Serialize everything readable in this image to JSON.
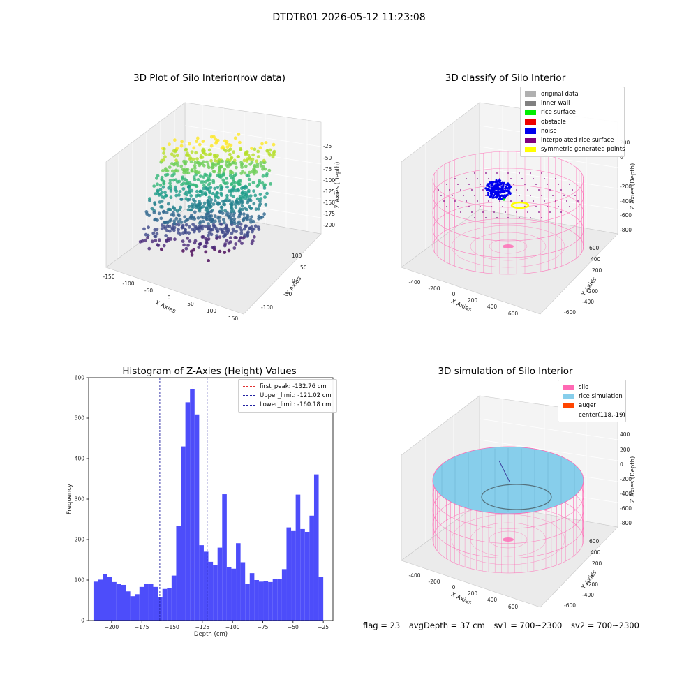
{
  "suptitle": "DTDTR01 2026-05-12 11:23:08",
  "colors": {
    "bar": "#4d4dfa",
    "first_peak": "#e03030",
    "limit": "#2020a0",
    "silo": "#ff69b4",
    "rice": "#87ceeb"
  },
  "panels": {
    "raw": {
      "title": "3D Plot of Silo Interior(row data)",
      "x_label": "X Axies",
      "y_label": "Y Axies",
      "z_label": "Z Axies (Depth)",
      "x_ticks": [
        "-150",
        "-100",
        "-50",
        "0",
        "50",
        "100",
        "150"
      ],
      "y_ticks": [
        "100",
        "50",
        "0",
        "-50",
        "-100"
      ],
      "z_ticks": [
        "-25",
        "-50",
        "-75",
        "-100",
        "-125",
        "-150",
        "-175",
        "-200"
      ]
    },
    "classify": {
      "title": "3D classify of Silo Interior",
      "x_label": "X Axies",
      "y_label": "Y Axies",
      "z_label": "Z Axies (Depth)",
      "x_ticks": [
        "-400",
        "-200",
        "0",
        "200",
        "400",
        "600"
      ],
      "y_ticks": [
        "600",
        "400",
        "200",
        "0",
        "-200",
        "-400",
        "-600"
      ],
      "z_ticks": [
        "200",
        "0",
        "-200",
        "-400",
        "-600",
        "-800"
      ],
      "legend": [
        {
          "label": "original data",
          "color": "#b0b0b0"
        },
        {
          "label": "inner wall",
          "color": "#808080"
        },
        {
          "label": "rice surface",
          "color": "#00ee00"
        },
        {
          "label": "obstacle",
          "color": "#ee0000"
        },
        {
          "label": "noise",
          "color": "#0000ee"
        },
        {
          "label": "interpolated rice surface",
          "color": "#800080"
        },
        {
          "label": "symmetric generated points",
          "color": "#ffff00"
        }
      ]
    },
    "simulation": {
      "title": "3D simulation of Silo Interior",
      "x_label": "X Axies",
      "y_label": "Y Axies",
      "z_label": "Z Axies (Depth)",
      "x_ticks": [
        "-400",
        "-200",
        "0",
        "200",
        "400",
        "600"
      ],
      "y_ticks": [
        "600",
        "400",
        "200",
        "0",
        "-200",
        "-400",
        "-600"
      ],
      "z_ticks": [
        "400",
        "200",
        "0",
        "-200",
        "-400",
        "-600",
        "-800"
      ],
      "legend": [
        {
          "label": "silo",
          "color": "#ff69b4"
        },
        {
          "label": "rice simulation",
          "color": "#87ceeb"
        },
        {
          "label": "auger",
          "color": "#ff4500"
        },
        {
          "label": "center(118,-19)",
          "color": ""
        }
      ]
    }
  },
  "chart_data": {
    "type": "bar",
    "title": "Histogram of Z-Axies (Height) Values",
    "xlabel": "Depth (cm)",
    "ylabel": "Frequency",
    "xlim": [
      -219,
      -17
    ],
    "ylim": [
      0,
      600
    ],
    "x_ticks": [
      -200,
      -175,
      -150,
      -125,
      -100,
      -75,
      -50,
      -25
    ],
    "y_ticks": [
      0,
      100,
      200,
      300,
      400,
      500,
      600
    ],
    "bin_width": 3.8,
    "bin_start": -215.0,
    "values": [
      96,
      101,
      115,
      108,
      95,
      90,
      88,
      72,
      60,
      65,
      83,
      91,
      91,
      83,
      57,
      78,
      81,
      111,
      233,
      430,
      539,
      572,
      509,
      186,
      170,
      145,
      137,
      180,
      312,
      132,
      128,
      191,
      144,
      91,
      117,
      100,
      96,
      98,
      95,
      103,
      102,
      127,
      230,
      221,
      311,
      226,
      219,
      259,
      361,
      108
    ],
    "vlines": [
      {
        "label": "first_peak: -132.76 cm",
        "x": -132.76,
        "color": "#e03030"
      },
      {
        "label": "Upper_limit: -121.02 cm",
        "x": -121.02,
        "color": "#2020a0"
      },
      {
        "label": "Lower_limit: -160.18 cm",
        "x": -160.18,
        "color": "#2020a0"
      }
    ]
  },
  "footer": {
    "flag": "flag = 23",
    "avg_depth": "avgDepth = 37 cm",
    "sv1": "sv1 = 700~2300",
    "sv2": "sv2 = 700~2300"
  }
}
